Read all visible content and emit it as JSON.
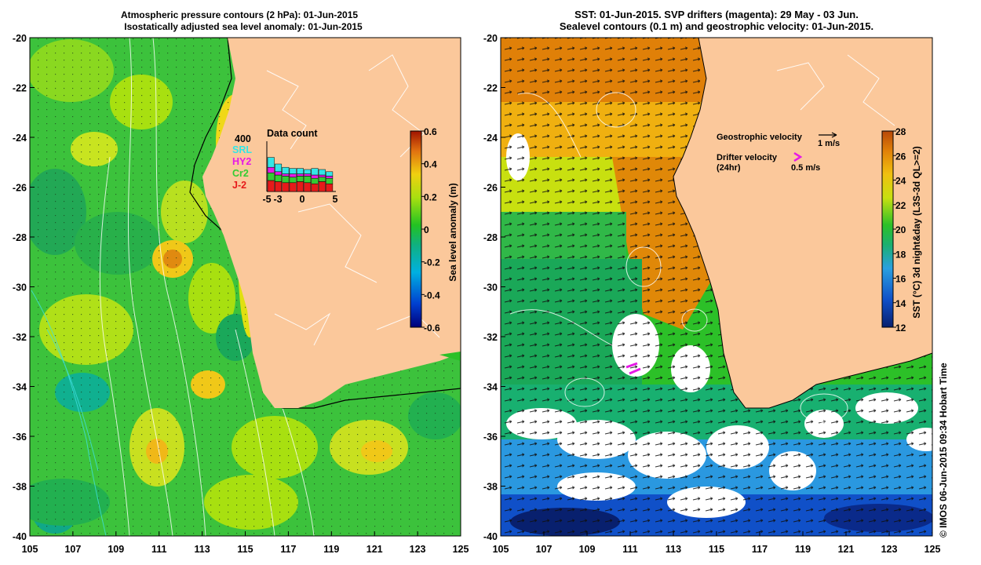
{
  "left_panel": {
    "title_line1": "Atmospheric pressure contours (2 hPa): 01-Jun-2015",
    "title_line2": "Isostatically adjusted sea level anomaly: 01-Jun-2015",
    "colorbar_label": "Sea level anomaly (m)",
    "colorbar_ticks": [
      "0.6",
      "0.4",
      "0.2",
      "0",
      "-0.2",
      "-0.4",
      "-0.6"
    ],
    "inset": {
      "title": "Data count",
      "max_label": "400",
      "missions": [
        {
          "name": "SRL",
          "color": "#33e6e6"
        },
        {
          "name": "HY2",
          "color": "#e619e6"
        },
        {
          "name": "Cr2",
          "color": "#33cc33"
        },
        {
          "name": "J-2",
          "color": "#e61a1a"
        }
      ],
      "x_ticks": [
        "-5",
        "-3",
        "0",
        "5"
      ]
    }
  },
  "right_panel": {
    "title_line1": "SST: 01-Jun-2015. SVP drifters (magenta): 29 May - 03 Jun.",
    "title_line2": "Sealevel contours (0.1 m) and geostrophic velocity: 01-Jun-2015.",
    "colorbar_label": "SST (°C) 3d night&day (L3S-3d QL>=2)",
    "colorbar_ticks": [
      "28",
      "26",
      "24",
      "22",
      "20",
      "18",
      "16",
      "14",
      "12"
    ],
    "legend": {
      "geo_label": "Geostrophic velocity",
      "geo_scale": "1 m/s",
      "drifter_label": "Drifter velocity",
      "drifter_sub": "(24hr)",
      "drifter_scale": "0.5 m/s"
    }
  },
  "axes": {
    "x_ticks": [
      "105",
      "107",
      "109",
      "111",
      "113",
      "115",
      "117",
      "119",
      "121",
      "123",
      "125"
    ],
    "y_ticks": [
      "-20",
      "-22",
      "-24",
      "-26",
      "-28",
      "-30",
      "-32",
      "-34",
      "-36",
      "-38",
      "-40"
    ]
  },
  "credit": "© IMOS 06-Jun-2015 09:34 Hobart Time",
  "colors": {
    "land": "#fbc89b",
    "sla_palette": [
      "#00007a",
      "#0040d0",
      "#00b0e0",
      "#10b080",
      "#22c222",
      "#a8e010",
      "#f0d010",
      "#e07010",
      "#a01400"
    ],
    "sst_palette": [
      "#08206e",
      "#1050c8",
      "#2aa0e0",
      "#1bb070",
      "#2cc028",
      "#c8e010",
      "#f0c010",
      "#e08008",
      "#b84808"
    ]
  }
}
